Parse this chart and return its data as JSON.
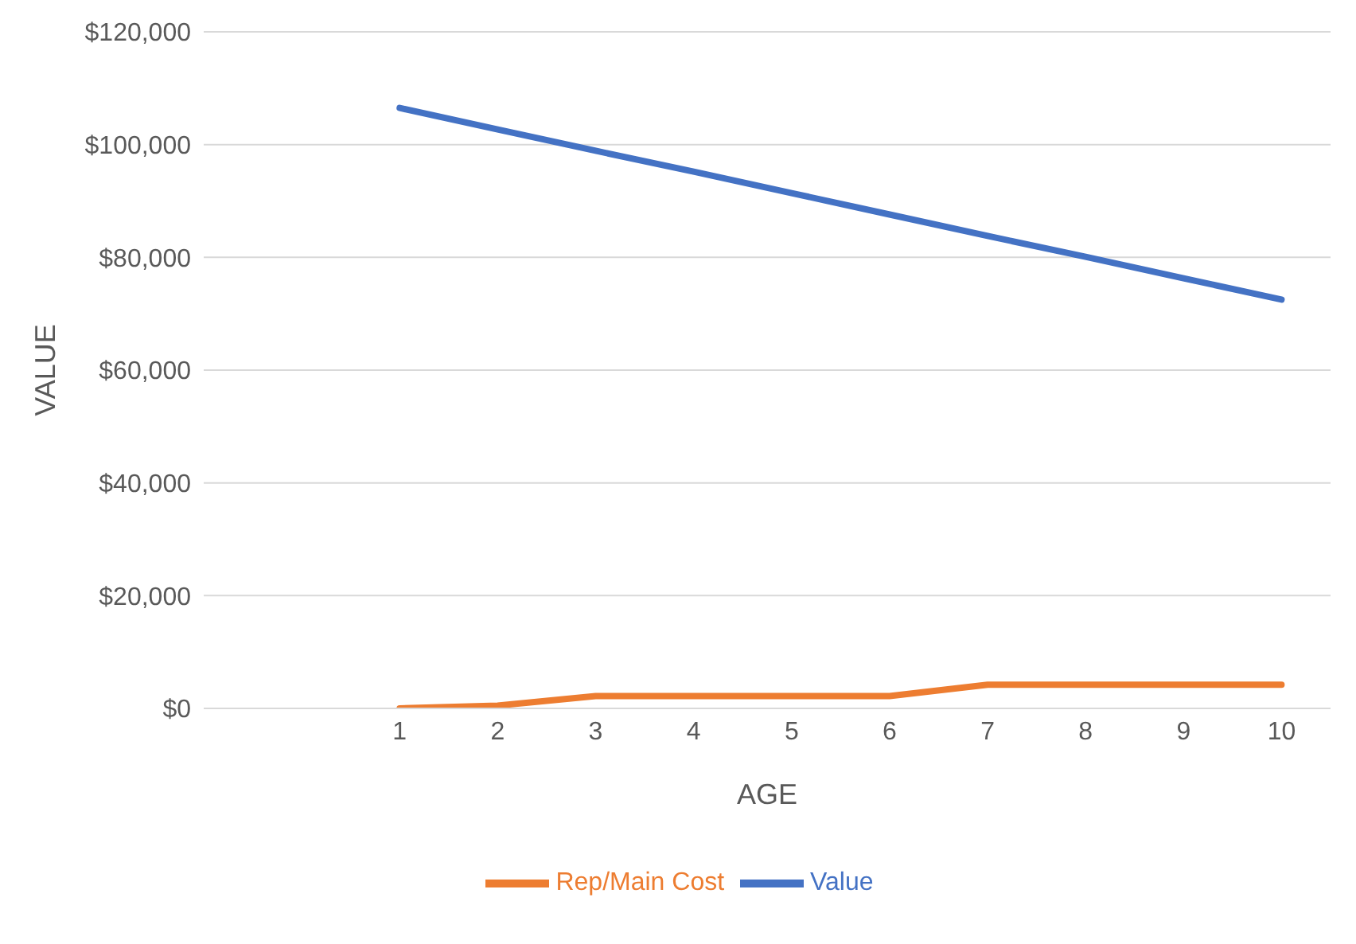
{
  "chart_data": {
    "type": "line",
    "xlabel": "AGE",
    "ylabel": "VALUE",
    "x": [
      1,
      2,
      3,
      4,
      5,
      6,
      7,
      8,
      9,
      10
    ],
    "series": [
      {
        "name": "Value",
        "color": "#4472c4",
        "values": [
          106500,
          102700,
          98900,
          95200,
          91400,
          87600,
          83800,
          80100,
          76300,
          72500
        ]
      },
      {
        "name": "Rep/Main Cost",
        "color": "#ed7d31",
        "values": [
          0,
          500,
          2200,
          2200,
          2200,
          2200,
          4200,
          4200,
          4200,
          4200
        ]
      }
    ],
    "xlim": [
      -1,
      10.5
    ],
    "xticks": [
      1,
      2,
      3,
      4,
      5,
      6,
      7,
      8,
      9,
      10
    ],
    "ylim": [
      0,
      120000
    ],
    "yticks": [
      {
        "value": 0,
        "label": "$0"
      },
      {
        "value": 20000,
        "label": "$20,000"
      },
      {
        "value": 40000,
        "label": "$40,000"
      },
      {
        "value": 60000,
        "label": "$60,000"
      },
      {
        "value": 80000,
        "label": "$80,000"
      },
      {
        "value": 100000,
        "label": "$100,000"
      },
      {
        "value": 120000,
        "label": "$120,000"
      }
    ],
    "grid": "y",
    "legend": "bottom",
    "marker": "none",
    "line_style": "solid"
  }
}
